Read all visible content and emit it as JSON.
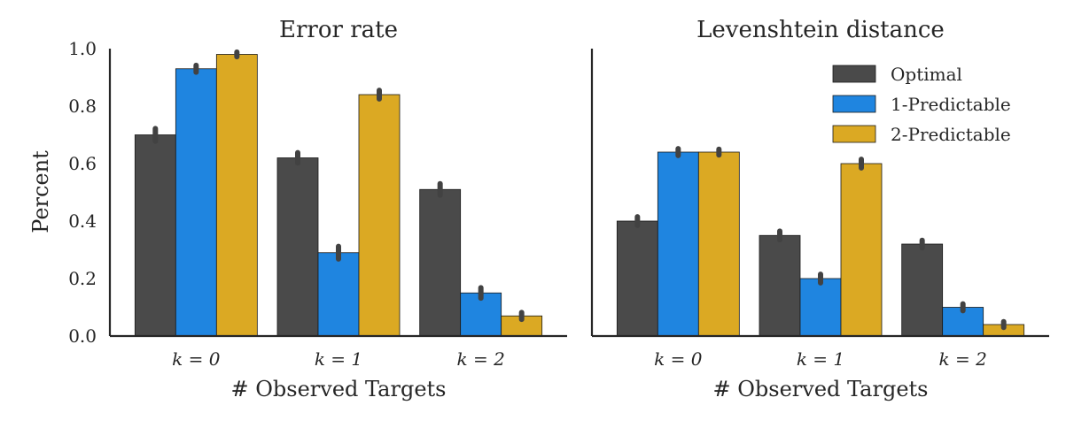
{
  "chart_data": [
    {
      "type": "bar",
      "title": "Error rate",
      "xlabel": "# Observed Targets",
      "ylabel": "Percent",
      "categories": [
        "k = 0",
        "k = 1",
        "k = 2"
      ],
      "ylim": [
        0,
        1.0
      ],
      "yticks": [
        "0.0",
        "0.2",
        "0.4",
        "0.6",
        "0.8",
        "1.0"
      ],
      "grid": false,
      "series": [
        {
          "name": "Optimal",
          "color": "#4a4a4a",
          "values": [
            0.7,
            0.62,
            0.51
          ],
          "err": [
            0.022,
            0.018,
            0.02
          ]
        },
        {
          "name": "1-Predictable",
          "color": "#1f85e0",
          "values": [
            0.93,
            0.29,
            0.15
          ],
          "err": [
            0.012,
            0.022,
            0.018
          ]
        },
        {
          "name": "2-Predictable",
          "color": "#dba923",
          "values": [
            0.98,
            0.84,
            0.07
          ],
          "err": [
            0.008,
            0.015,
            0.012
          ]
        }
      ]
    },
    {
      "type": "bar",
      "title": "Levenshtein distance",
      "xlabel": "# Observed Targets",
      "ylabel": "",
      "categories": [
        "k = 0",
        "k = 1",
        "k = 2"
      ],
      "ylim": [
        0,
        1.0
      ],
      "grid": false,
      "legend": {
        "position": "top-right",
        "entries": [
          "Optimal",
          "1-Predictable",
          "2-Predictable"
        ]
      },
      "series": [
        {
          "name": "Optimal",
          "color": "#4a4a4a",
          "values": [
            0.4,
            0.35,
            0.32
          ],
          "err": [
            0.015,
            0.015,
            0.013
          ]
        },
        {
          "name": "1-Predictable",
          "color": "#1f85e0",
          "values": [
            0.64,
            0.2,
            0.1
          ],
          "err": [
            0.012,
            0.015,
            0.012
          ]
        },
        {
          "name": "2-Predictable",
          "color": "#dba923",
          "values": [
            0.64,
            0.6,
            0.04
          ],
          "err": [
            0.01,
            0.015,
            0.01
          ]
        }
      ]
    }
  ]
}
